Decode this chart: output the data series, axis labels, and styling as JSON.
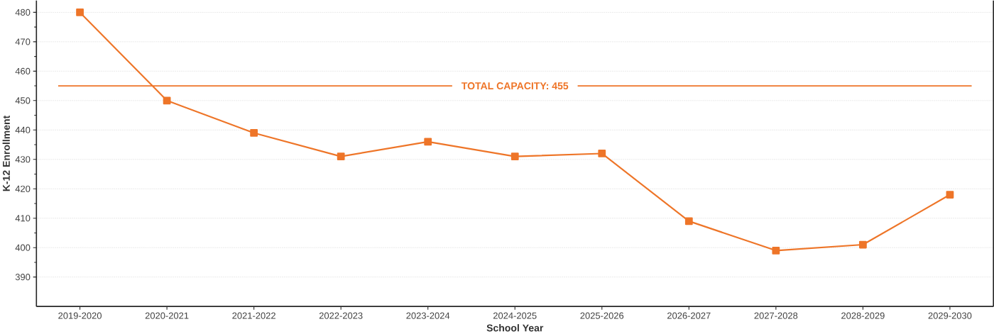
{
  "chart_data": {
    "type": "line",
    "xlabel": "School Year",
    "ylabel": "K-12 Enrollment",
    "categories": [
      "2019-2020",
      "2020-2021",
      "2021-2022",
      "2022-2023",
      "2023-2024",
      "2024-2025",
      "2025-2026",
      "2026-2027",
      "2027-2028",
      "2028-2029",
      "2029-2030"
    ],
    "series": [
      {
        "color": "#ee7528",
        "values": [
          480,
          450,
          439,
          431,
          436,
          431,
          432,
          409,
          399,
          401,
          418
        ]
      }
    ],
    "ylim": [
      380,
      484
    ],
    "yticks": [
      390,
      400,
      410,
      420,
      430,
      440,
      450,
      460,
      470,
      480
    ],
    "grid": "y",
    "marker": "square",
    "line_style": "solid",
    "ref_lines": [
      {
        "axis": "y",
        "value": 455,
        "label": "TOTAL CAPACITY: 455",
        "color": "#ee7528"
      }
    ]
  }
}
